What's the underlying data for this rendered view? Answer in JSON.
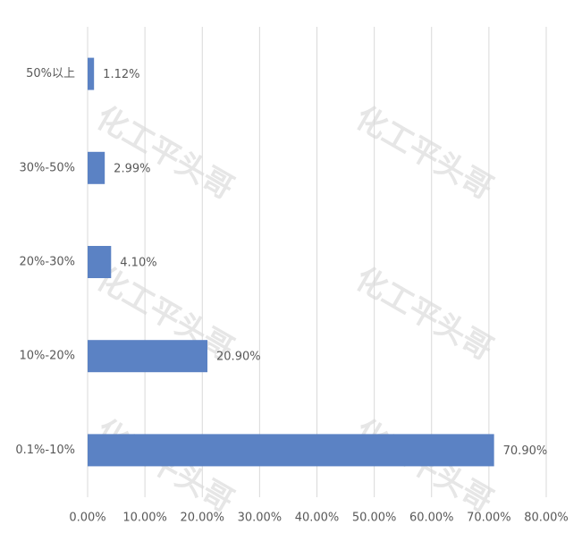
{
  "chart_data": {
    "type": "bar",
    "orientation": "horizontal",
    "categories": [
      "50%以上",
      "30%-50%",
      "20%-30%",
      "10%-20%",
      "0.1%-10%"
    ],
    "values": [
      1.12,
      2.99,
      4.1,
      20.9,
      70.9
    ],
    "value_labels": [
      "1.12%",
      "2.99%",
      "4.10%",
      "20.90%",
      "70.90%"
    ],
    "color": "#5b82c4",
    "xlim": [
      0,
      80
    ],
    "xticks": [
      {
        "value": 0,
        "label": "0.00%"
      },
      {
        "value": 10,
        "label": "10.00%"
      },
      {
        "value": 20,
        "label": "20.00%"
      },
      {
        "value": 30,
        "label": "30.00%"
      },
      {
        "value": 40,
        "label": "40.00%"
      },
      {
        "value": 50,
        "label": "50.00%"
      },
      {
        "value": 60,
        "label": "60.00%"
      },
      {
        "value": 70,
        "label": "70.00%"
      },
      {
        "value": 80,
        "label": "80.00%"
      }
    ],
    "grid": true,
    "watermark": "化工平头哥"
  }
}
